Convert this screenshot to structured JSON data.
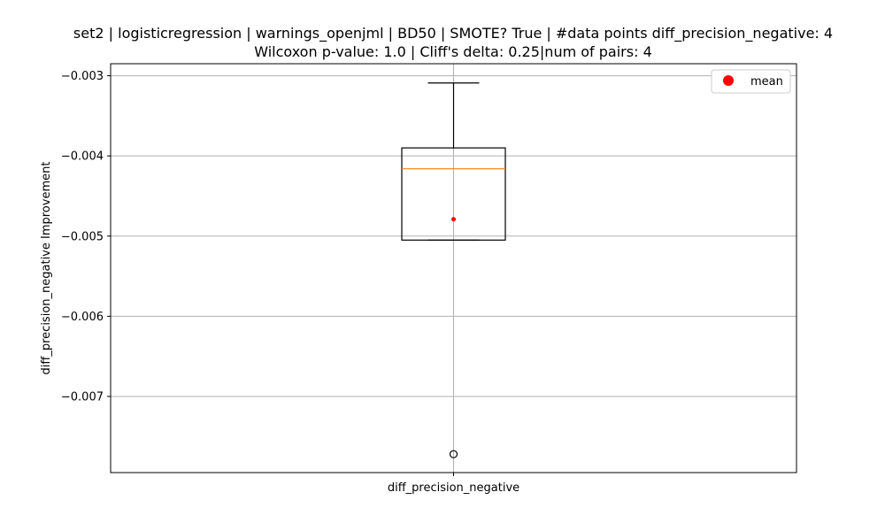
{
  "chart_data": {
    "type": "box",
    "title_line1": "set2 | logisticregression | warnings_openjml | BD50 | SMOTE? True | #data points diff_precision_negative: 4",
    "title_line2": "Wilcoxon p-value: 1.0 | Cliff's delta: 0.25|num of pairs: 4",
    "xlabel": "",
    "ylabel": "diff_precision_negative Improvement",
    "categories": [
      "diff_precision_negative"
    ],
    "ylim": [
      -0.00795,
      -0.00285
    ],
    "yticks": [
      -0.003,
      -0.004,
      -0.005,
      -0.006,
      -0.007
    ],
    "ytick_labels": [
      "−0.003",
      "−0.004",
      "−0.005",
      "−0.006",
      "−0.007"
    ],
    "grid": true,
    "legend": {
      "position": "top-right",
      "entries": [
        {
          "label": "mean",
          "marker": "circle",
          "color": "#ff0000"
        }
      ]
    },
    "box": {
      "whisker_high": -0.00309,
      "q3": -0.0039,
      "median": -0.00416,
      "q1": -0.00505,
      "whisker_low": -0.00505,
      "mean": -0.00479,
      "outliers": [
        -0.00772
      ]
    },
    "colors": {
      "median": "#ff7f0e",
      "mean": "#ff0000",
      "grid": "#b0b0b0",
      "box": "#000000"
    }
  }
}
